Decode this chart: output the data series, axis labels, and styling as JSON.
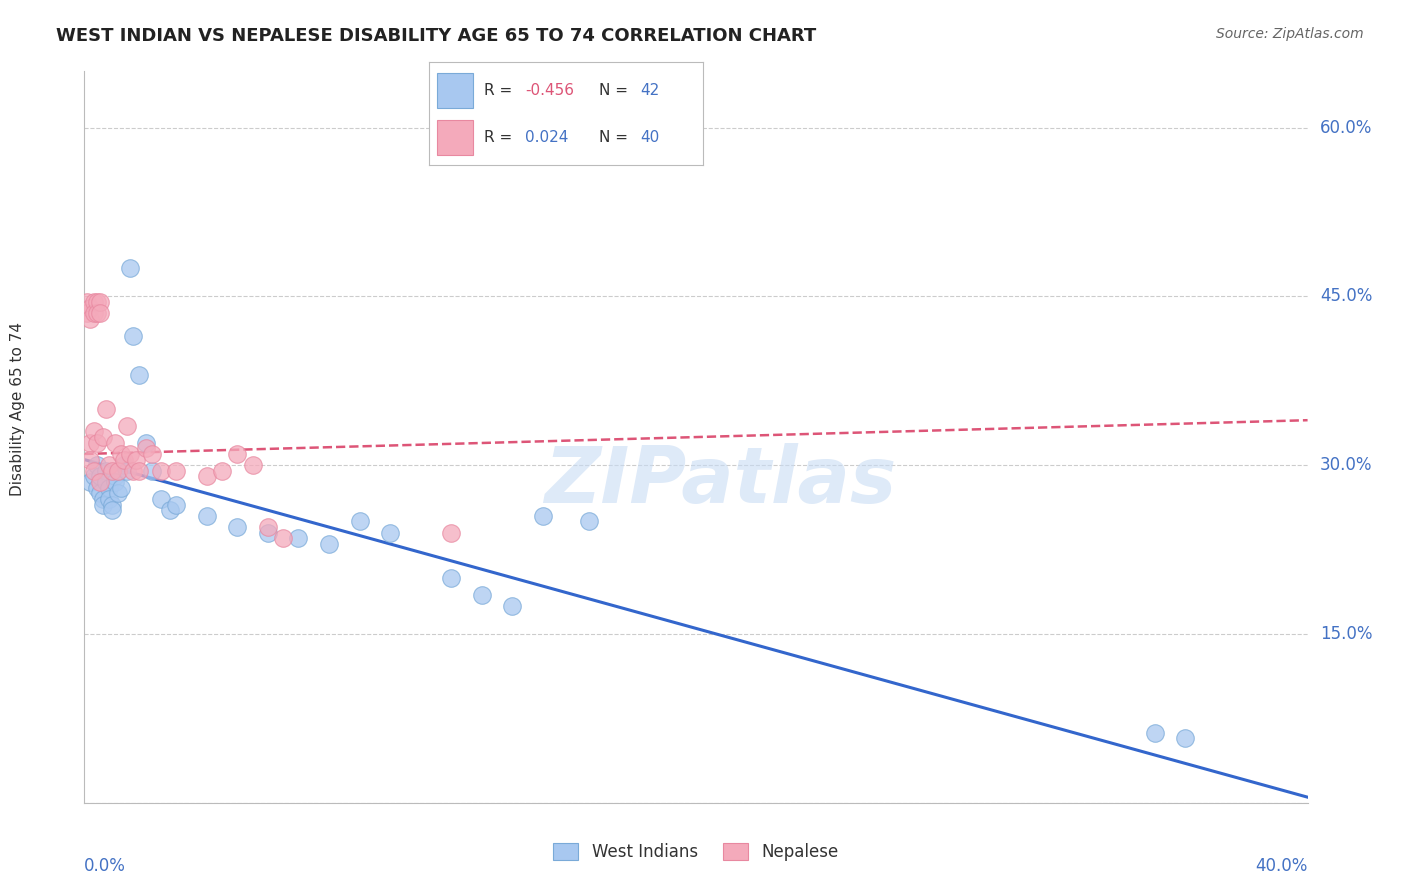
{
  "title": "WEST INDIAN VS NEPALESE DISABILITY AGE 65 TO 74 CORRELATION CHART",
  "source": "Source: ZipAtlas.com",
  "ylabel": "Disability Age 65 to 74",
  "ytick_labels": [
    "0.0%",
    "15.0%",
    "30.0%",
    "45.0%",
    "60.0%"
  ],
  "ytick_values": [
    0.0,
    0.15,
    0.3,
    0.45,
    0.6
  ],
  "xlim": [
    0.0,
    0.4
  ],
  "ylim": [
    0.0,
    0.65
  ],
  "legend_r_blue": "-0.456",
  "legend_n_blue": "42",
  "legend_r_pink": "0.024",
  "legend_n_pink": "40",
  "legend_labels": [
    "West Indians",
    "Nepalese"
  ],
  "blue_color": "#A8C8F0",
  "pink_color": "#F4AABB",
  "blue_scatter_edge": "#7AAAD8",
  "pink_scatter_edge": "#E888A0",
  "blue_line_color": "#3366CC",
  "pink_line_color": "#DD5577",
  "title_color": "#222222",
  "axis_label_color": "#4472C4",
  "grid_color": "#CCCCCC",
  "watermark": "ZIPatlas",
  "blue_line_x0": 0.0,
  "blue_line_y0": 0.305,
  "blue_line_x1": 0.4,
  "blue_line_y1": 0.005,
  "pink_line_x0": 0.0,
  "pink_line_y0": 0.31,
  "pink_line_x1": 0.4,
  "pink_line_y1": 0.34,
  "blue_x": [
    0.002,
    0.003,
    0.004,
    0.004,
    0.005,
    0.005,
    0.006,
    0.006,
    0.007,
    0.007,
    0.008,
    0.008,
    0.009,
    0.009,
    0.01,
    0.01,
    0.011,
    0.012,
    0.013,
    0.014,
    0.015,
    0.016,
    0.018,
    0.02,
    0.022,
    0.025,
    0.028,
    0.03,
    0.04,
    0.05,
    0.06,
    0.07,
    0.08,
    0.09,
    0.1,
    0.12,
    0.13,
    0.14,
    0.15,
    0.165,
    0.35,
    0.36
  ],
  "blue_y": [
    0.285,
    0.29,
    0.3,
    0.28,
    0.29,
    0.275,
    0.27,
    0.265,
    0.295,
    0.285,
    0.28,
    0.27,
    0.265,
    0.26,
    0.29,
    0.285,
    0.275,
    0.28,
    0.3,
    0.295,
    0.475,
    0.415,
    0.38,
    0.32,
    0.295,
    0.27,
    0.26,
    0.265,
    0.255,
    0.245,
    0.24,
    0.235,
    0.23,
    0.25,
    0.24,
    0.2,
    0.185,
    0.175,
    0.255,
    0.25,
    0.062,
    0.058
  ],
  "pink_x": [
    0.001,
    0.001,
    0.002,
    0.002,
    0.002,
    0.002,
    0.003,
    0.003,
    0.003,
    0.003,
    0.004,
    0.004,
    0.004,
    0.005,
    0.005,
    0.005,
    0.006,
    0.007,
    0.008,
    0.009,
    0.01,
    0.011,
    0.012,
    0.013,
    0.014,
    0.015,
    0.016,
    0.017,
    0.018,
    0.02,
    0.022,
    0.025,
    0.03,
    0.04,
    0.045,
    0.05,
    0.055,
    0.06,
    0.065,
    0.12
  ],
  "pink_y": [
    0.445,
    0.435,
    0.44,
    0.43,
    0.32,
    0.305,
    0.445,
    0.435,
    0.33,
    0.295,
    0.445,
    0.435,
    0.32,
    0.445,
    0.435,
    0.285,
    0.325,
    0.35,
    0.3,
    0.295,
    0.32,
    0.295,
    0.31,
    0.305,
    0.335,
    0.31,
    0.295,
    0.305,
    0.295,
    0.315,
    0.31,
    0.295,
    0.295,
    0.29,
    0.295,
    0.31,
    0.3,
    0.245,
    0.235,
    0.24
  ]
}
